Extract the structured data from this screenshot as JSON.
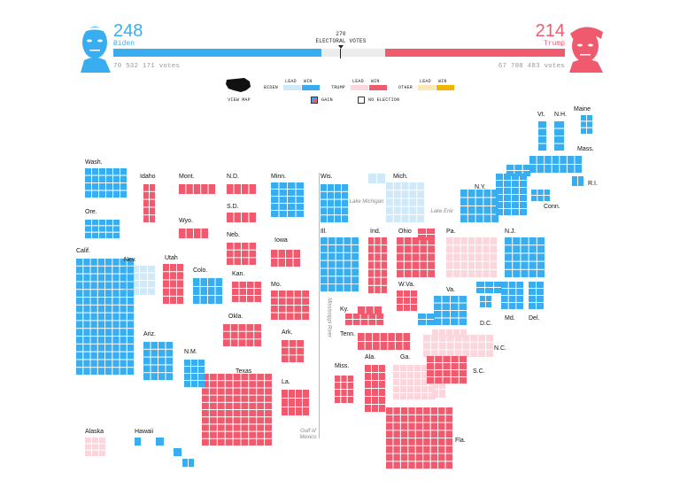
{
  "header": {
    "biden": {
      "electoral_votes": "248",
      "name": "Biden",
      "popular_votes": "70 532 171 votes",
      "color": "#38aef0"
    },
    "trump": {
      "electoral_votes": "214",
      "name": "Trump",
      "popular_votes": "67 788 483 votes",
      "color": "#ef5a6e"
    },
    "threshold": {
      "number": "270",
      "label": "ELECTORAL VOTES"
    },
    "progress": {
      "biden_lead_fraction": 0.461,
      "trump_lead_fraction": 0.398
    }
  },
  "legend": {
    "view_map": "VIEW MAP",
    "lead": "LEAD",
    "win": "WIN",
    "groups": [
      {
        "name": "BIDEN",
        "lead_color": "#cfe9f9",
        "win_color": "#38aef0"
      },
      {
        "name": "TRUMP",
        "lead_color": "#fbd6dc",
        "win_color": "#ef5a6e"
      },
      {
        "name": "OTHER",
        "lead_color": "#fce8b4",
        "win_color": "#f2b400"
      }
    ],
    "gain": "GAIN",
    "no_election": "NO ELECTION"
  },
  "colors": {
    "biden_win": "#38aef0",
    "biden_lead": "#cfe9f9",
    "trump_win": "#ef5a6e",
    "trump_lead": "#fbd6dc"
  },
  "geography": {
    "lake_michigan": "Lake Michigan",
    "lake_erie": "Lake Erie",
    "mississippi": "Mississippi River",
    "gulf": "Gulf of Mexico"
  },
  "states": [
    {
      "abbr": "Vt.",
      "status": "biden_win"
    },
    {
      "abbr": "N.H.",
      "status": "biden_win"
    },
    {
      "abbr": "Maine",
      "status": "biden_win"
    },
    {
      "abbr": "Mass.",
      "status": "biden_win"
    },
    {
      "abbr": "R.I.",
      "status": "biden_win"
    },
    {
      "abbr": "Conn.",
      "status": "biden_win"
    },
    {
      "abbr": "N.Y.",
      "status": "biden_win"
    },
    {
      "abbr": "N.J.",
      "status": "biden_win"
    },
    {
      "abbr": "Del.",
      "status": "biden_win"
    },
    {
      "abbr": "Md.",
      "status": "biden_win"
    },
    {
      "abbr": "D.C.",
      "status": "biden_win"
    },
    {
      "abbr": "Va.",
      "status": "biden_win"
    },
    {
      "abbr": "Pa.",
      "status": "trump_lead"
    },
    {
      "abbr": "N.C.",
      "status": "trump_lead"
    },
    {
      "abbr": "Ga.",
      "status": "trump_lead"
    },
    {
      "abbr": "S.C.",
      "status": "trump_win"
    },
    {
      "abbr": "Fla.",
      "status": "trump_win"
    },
    {
      "abbr": "W.Va.",
      "status": "trump_win"
    },
    {
      "abbr": "Ohio",
      "status": "trump_win"
    },
    {
      "abbr": "Mich.",
      "status": "biden_lead"
    },
    {
      "abbr": "Ind.",
      "status": "trump_win"
    },
    {
      "abbr": "Ky.",
      "status": "trump_win"
    },
    {
      "abbr": "Tenn.",
      "status": "trump_win"
    },
    {
      "abbr": "Ala.",
      "status": "trump_win"
    },
    {
      "abbr": "Miss.",
      "status": "trump_win"
    },
    {
      "abbr": "Wis.",
      "status": "biden_win"
    },
    {
      "abbr": "Ill.",
      "status": "biden_win"
    },
    {
      "abbr": "Minn.",
      "status": "biden_win"
    },
    {
      "abbr": "Iowa",
      "status": "trump_win"
    },
    {
      "abbr": "Mo.",
      "status": "trump_win"
    },
    {
      "abbr": "Ark.",
      "status": "trump_win"
    },
    {
      "abbr": "La.",
      "status": "trump_win"
    },
    {
      "abbr": "N.D.",
      "status": "trump_win"
    },
    {
      "abbr": "S.D.",
      "status": "trump_win"
    },
    {
      "abbr": "Neb.",
      "status": "trump_win"
    },
    {
      "abbr": "Kan.",
      "status": "trump_win"
    },
    {
      "abbr": "Okla.",
      "status": "trump_win"
    },
    {
      "abbr": "Texas",
      "status": "trump_win"
    },
    {
      "abbr": "Mont.",
      "status": "trump_win"
    },
    {
      "abbr": "Wyo.",
      "status": "trump_win"
    },
    {
      "abbr": "Colo.",
      "status": "biden_win"
    },
    {
      "abbr": "N.M.",
      "status": "biden_win"
    },
    {
      "abbr": "Ariz.",
      "status": "biden_win"
    },
    {
      "abbr": "Utah",
      "status": "trump_win"
    },
    {
      "abbr": "Idaho",
      "status": "trump_win"
    },
    {
      "abbr": "Nev.",
      "status": "biden_lead"
    },
    {
      "abbr": "Wash.",
      "status": "biden_win"
    },
    {
      "abbr": "Ore.",
      "status": "biden_win"
    },
    {
      "abbr": "Calif.",
      "status": "biden_win"
    },
    {
      "abbr": "Alaska",
      "status": "trump_lead"
    },
    {
      "abbr": "Hawaii",
      "status": "biden_win"
    }
  ]
}
